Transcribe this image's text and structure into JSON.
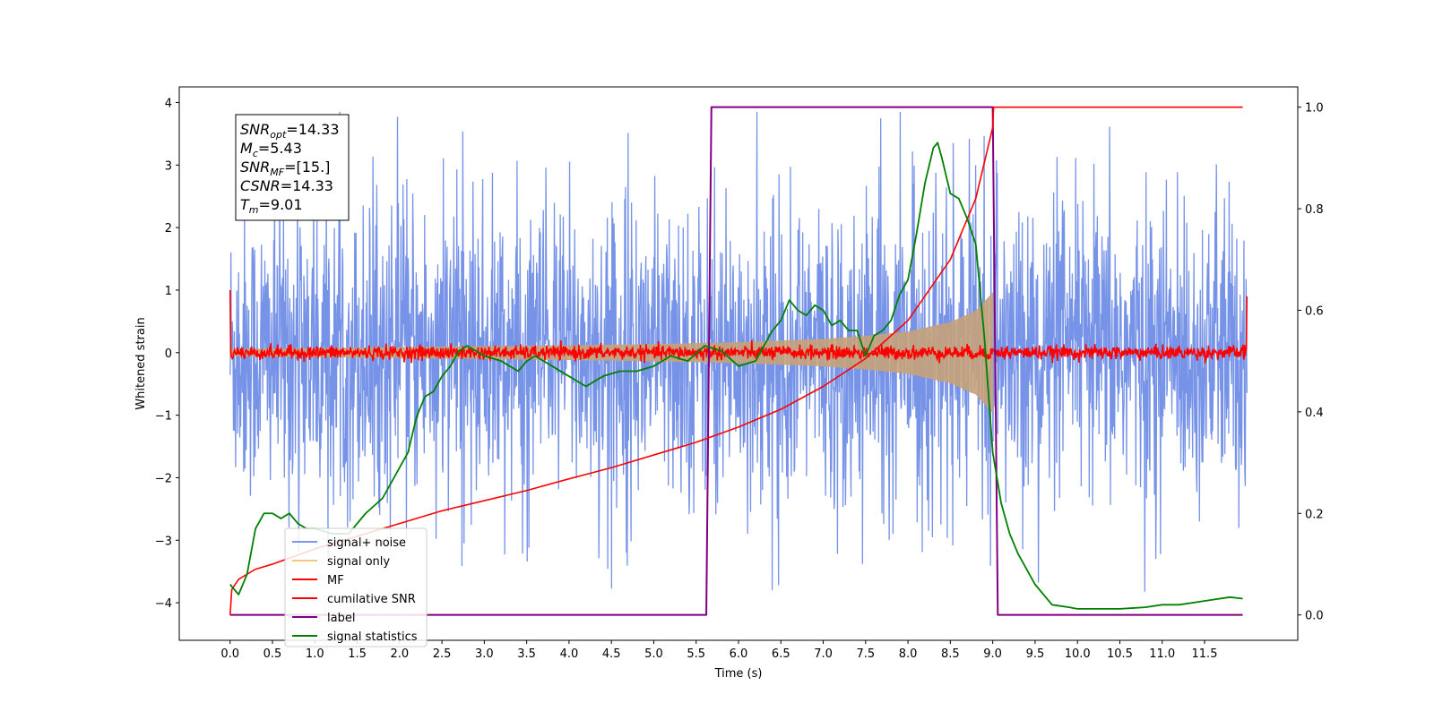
{
  "chart_data": {
    "type": "line",
    "xlabel": "Time (s)",
    "ylabel": "Whitened strain",
    "xlim": [
      -0.6,
      12.6
    ],
    "ylim": [
      -4.6,
      4.25
    ],
    "y2lim": [
      -0.05,
      1.04
    ],
    "x_ticks": [
      "0.0",
      "0.5",
      "1.0",
      "1.5",
      "2.0",
      "2.5",
      "3.0",
      "3.5",
      "4.0",
      "4.5",
      "5.0",
      "5.5",
      "6.0",
      "6.5",
      "7.0",
      "7.5",
      "8.0",
      "8.5",
      "9.0",
      "9.5",
      "10.0",
      "10.5",
      "11.0",
      "11.5"
    ],
    "y_ticks": [
      "4",
      "3",
      "2",
      "1",
      "0",
      "−1",
      "−2",
      "−3",
      "−4"
    ],
    "y2_ticks": [
      "1.0",
      "0.8",
      "0.6",
      "0.4",
      "0.2",
      "0.0"
    ],
    "annotation": {
      "lines": [
        {
          "base": "SNR",
          "sub": "opt",
          "value": "=14.33"
        },
        {
          "base": "M",
          "sub": "c",
          "value": "=5.43"
        },
        {
          "base": "SNR",
          "sub": "MF",
          "value": "=[15.]"
        },
        {
          "base": "CSNR",
          "sub": "",
          "value": "=14.33"
        },
        {
          "base": "T",
          "sub": "m",
          "value": "=9.01"
        }
      ]
    },
    "legend": {
      "placement": "lower left",
      "entries": [
        {
          "label": "signal+ noise",
          "color": "#7b96e8"
        },
        {
          "label": "signal only",
          "color": "#f5c77e"
        },
        {
          "label": "MF",
          "color": "#ff0000"
        },
        {
          "label": "cumilative SNR",
          "color": "#ff0000"
        },
        {
          "label": "label",
          "color": "#800080"
        },
        {
          "label": "signal statistics",
          "color": "#008000"
        }
      ]
    },
    "series": [
      {
        "name": "signal+ noise",
        "axis": "left",
        "color": "#6f8de6",
        "kind": "noise",
        "x_range": [
          0.0,
          12.0
        ],
        "mean": 0.0,
        "typical_amplitude": 1.6,
        "peak_range": [
          -4.15,
          3.85
        ]
      },
      {
        "name": "signal only",
        "axis": "left",
        "color": "#c7a27a",
        "kind": "chirp-envelope",
        "x": [
          0.0,
          2.0,
          4.0,
          5.0,
          6.0,
          7.0,
          7.5,
          8.0,
          8.5,
          8.8,
          9.0
        ],
        "amplitude": [
          0.05,
          0.08,
          0.11,
          0.13,
          0.16,
          0.21,
          0.26,
          0.33,
          0.48,
          0.66,
          0.95
        ]
      },
      {
        "name": "MF",
        "axis": "left",
        "color": "#ff0000",
        "kind": "noise",
        "x_range": [
          0.0,
          12.0
        ],
        "mean": 0.0,
        "typical_amplitude": 0.1,
        "endpoint_values": [
          1.0,
          0.9
        ]
      },
      {
        "name": "cumilative SNR",
        "axis": "right",
        "color": "#ff0000",
        "x": [
          0.0,
          0.02,
          0.1,
          0.3,
          0.5,
          1.0,
          1.5,
          2.0,
          2.5,
          3.0,
          3.5,
          4.0,
          4.5,
          5.0,
          5.5,
          6.0,
          6.5,
          7.0,
          7.5,
          8.0,
          8.5,
          8.8,
          9.0,
          9.01,
          11.95
        ],
        "y": [
          0.0,
          0.05,
          0.07,
          0.09,
          0.1,
          0.13,
          0.155,
          0.18,
          0.205,
          0.225,
          0.245,
          0.268,
          0.29,
          0.315,
          0.34,
          0.37,
          0.405,
          0.45,
          0.505,
          0.58,
          0.7,
          0.82,
          0.96,
          1.0,
          1.0
        ]
      },
      {
        "name": "label",
        "axis": "right",
        "color": "#800080",
        "x": [
          0.0,
          5.62,
          5.68,
          9.0,
          9.06,
          11.95
        ],
        "y": [
          0.0,
          0.0,
          1.0,
          1.0,
          0.0,
          0.0
        ]
      },
      {
        "name": "signal statistics",
        "axis": "right",
        "color": "#008000",
        "x": [
          0.0,
          0.1,
          0.2,
          0.3,
          0.4,
          0.5,
          0.6,
          0.7,
          0.8,
          0.9,
          1.0,
          1.2,
          1.4,
          1.6,
          1.8,
          2.0,
          2.1,
          2.2,
          2.3,
          2.4,
          2.5,
          2.6,
          2.7,
          2.8,
          3.0,
          3.2,
          3.4,
          3.5,
          3.6,
          3.8,
          4.0,
          4.2,
          4.4,
          4.6,
          4.8,
          5.0,
          5.2,
          5.4,
          5.6,
          5.8,
          6.0,
          6.2,
          6.4,
          6.5,
          6.6,
          6.7,
          6.8,
          6.9,
          7.0,
          7.1,
          7.2,
          7.3,
          7.4,
          7.5,
          7.6,
          7.7,
          7.8,
          7.9,
          8.0,
          8.1,
          8.2,
          8.3,
          8.35,
          8.4,
          8.5,
          8.6,
          8.7,
          8.8,
          8.9,
          9.0,
          9.05,
          9.1,
          9.2,
          9.3,
          9.5,
          9.7,
          9.9,
          10.0,
          10.2,
          10.5,
          10.8,
          11.0,
          11.2,
          11.4,
          11.6,
          11.8,
          11.95
        ],
        "y": [
          0.06,
          0.04,
          0.08,
          0.17,
          0.2,
          0.2,
          0.19,
          0.2,
          0.18,
          0.17,
          0.17,
          0.16,
          0.16,
          0.2,
          0.23,
          0.29,
          0.32,
          0.39,
          0.43,
          0.44,
          0.47,
          0.49,
          0.52,
          0.53,
          0.51,
          0.5,
          0.48,
          0.5,
          0.51,
          0.49,
          0.47,
          0.45,
          0.47,
          0.48,
          0.48,
          0.49,
          0.51,
          0.5,
          0.53,
          0.52,
          0.49,
          0.5,
          0.56,
          0.58,
          0.62,
          0.6,
          0.59,
          0.61,
          0.6,
          0.57,
          0.58,
          0.56,
          0.56,
          0.51,
          0.55,
          0.56,
          0.58,
          0.63,
          0.66,
          0.75,
          0.85,
          0.92,
          0.93,
          0.9,
          0.83,
          0.82,
          0.78,
          0.73,
          0.55,
          0.32,
          0.27,
          0.22,
          0.16,
          0.12,
          0.06,
          0.02,
          0.015,
          0.012,
          0.012,
          0.012,
          0.015,
          0.02,
          0.02,
          0.025,
          0.03,
          0.035,
          0.032
        ]
      }
    ]
  }
}
